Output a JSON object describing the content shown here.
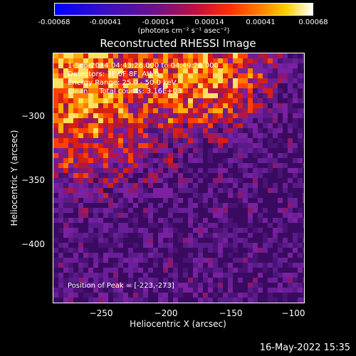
{
  "colorbar": {
    "ticks": [
      "-0.00068",
      "-0.00041",
      "-0.00014",
      "0.00014",
      "0.00041",
      "0.00068"
    ],
    "units": "(photons cm⁻² s⁻¹ asec⁻²)"
  },
  "title": "Reconstructed RHESSI Image",
  "info": {
    "line1": "1-Sep-2014 04:43:28.000 to 04:49:28.000",
    "line2": "Detectors: 3F 6F 8F, Att 0",
    "line3": "Energy Range: 25.0 - 50.0 keV",
    "line4": "Clean     Total counts: 3.16E+03"
  },
  "peak": "Position of Peak = [-223,-273]",
  "x_axis": {
    "label": "Heliocentric X (arcsec)",
    "ticks": [
      "−250",
      "−200",
      "−150",
      "−100"
    ]
  },
  "y_axis": {
    "label": "Heliocentric Y (arcsec)",
    "ticks": [
      "−300",
      "−350",
      "−400"
    ]
  },
  "timestamp": "16-May-2022 15:35",
  "colors": {
    "colormap_low": "#2020ff",
    "colormap_mid": "#5a1a78",
    "colormap_high": "#ffffff",
    "background": "#000000"
  }
}
